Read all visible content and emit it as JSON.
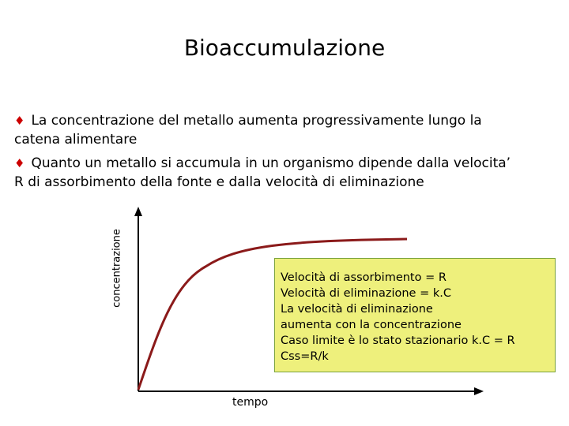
{
  "title": "Bioaccumulazione",
  "bullets": [
    {
      "lines": [
        "La concentrazione del metallo aumenta progressivamente lungo la",
        "catena alimentare"
      ]
    },
    {
      "lines": [
        "Quanto un metallo si accumula in un organismo dipende dalla velocita’",
        "R di assorbimento della fonte e dalla velocità di eliminazione"
      ]
    }
  ],
  "diagram": {
    "y_label": "concentrazione",
    "x_label": "tempo",
    "box": [
      "Velocità di assorbimento = R",
      "Velocità di eliminazione = k.C",
      "La velocità di eliminazione",
      "aumenta con la concentrazione",
      "Caso limite è lo stato stazionario k.C = R",
      "Css=R/k"
    ]
  }
}
